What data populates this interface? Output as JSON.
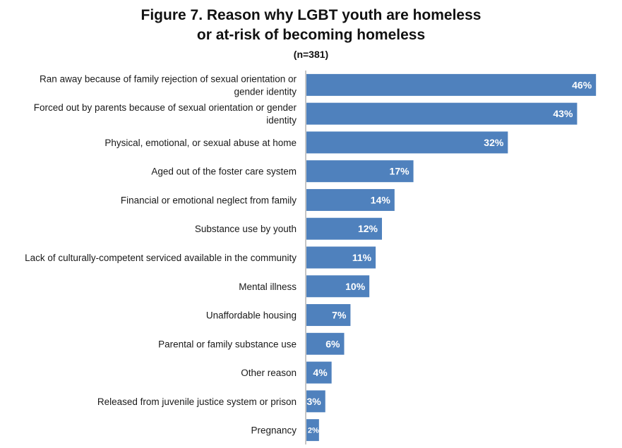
{
  "chart_data": {
    "type": "bar",
    "orientation": "horizontal",
    "title": "Figure 7.  Reason why LGBT youth are homeless",
    "title_line2": "or at-risk of becoming homeless",
    "subtitle": "(n=381)",
    "xlabel": "",
    "ylabel": "",
    "xlim": [
      0,
      48
    ],
    "grid": false,
    "legend": "none",
    "bar_color": "#4f81bd",
    "categories": [
      [
        "Ran away because of family rejection of sexual orientation or",
        "gender identity"
      ],
      [
        "Forced out by parents because of sexual orientation or gender",
        "identity"
      ],
      [
        "Physical, emotional, or sexual abuse at home"
      ],
      [
        "Aged out of the foster care system"
      ],
      [
        "Financial or emotional neglect from family"
      ],
      [
        "Substance use by youth"
      ],
      [
        "Lack of culturally-competent serviced available in the community"
      ],
      [
        "Mental illness"
      ],
      [
        "Unaffordable housing"
      ],
      [
        "Parental or family substance use"
      ],
      [
        "Other reason"
      ],
      [
        "Released from juvenile justice system or prison"
      ],
      [
        "Pregnancy"
      ]
    ],
    "values": [
      46,
      43,
      32,
      17,
      14,
      12,
      11,
      10,
      7,
      6,
      4,
      3,
      2
    ],
    "value_labels": [
      "46%",
      "43%",
      "32%",
      "17%",
      "14%",
      "12%",
      "11%",
      "10%",
      "7%",
      "6%",
      "4%",
      "3%",
      "2%"
    ]
  }
}
